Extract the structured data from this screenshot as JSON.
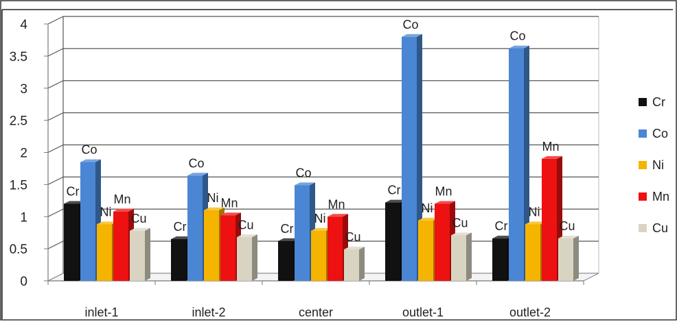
{
  "chart_data": {
    "type": "bar",
    "title": "",
    "xlabel": "",
    "ylabel": "",
    "ylim": [
      0,
      4
    ],
    "yticks": [
      "0",
      "0.5",
      "1",
      "1.5",
      "2",
      "2.5",
      "3",
      "3.5",
      "4"
    ],
    "grid": true,
    "legend_position": "right",
    "categories": [
      "inlet-1",
      "inlet-2",
      "center",
      "outlet-1",
      "outlet-2"
    ],
    "series": [
      {
        "name": "Cr",
        "color": "#111111",
        "values": [
          1.2,
          0.65,
          0.62,
          1.22,
          0.66
        ]
      },
      {
        "name": "Co",
        "color": "#4a86d4",
        "values": [
          1.85,
          1.64,
          1.49,
          3.8,
          3.62
        ]
      },
      {
        "name": "Ni",
        "color": "#f5b400",
        "values": [
          0.88,
          1.1,
          0.78,
          0.94,
          0.88
        ]
      },
      {
        "name": "Mn",
        "color": "#ee1111",
        "values": [
          1.08,
          1.02,
          1.0,
          1.2,
          1.9
        ]
      },
      {
        "name": "Cu",
        "color": "#d9d4c2",
        "values": [
          0.78,
          0.68,
          0.49,
          0.71,
          0.66
        ]
      }
    ]
  }
}
